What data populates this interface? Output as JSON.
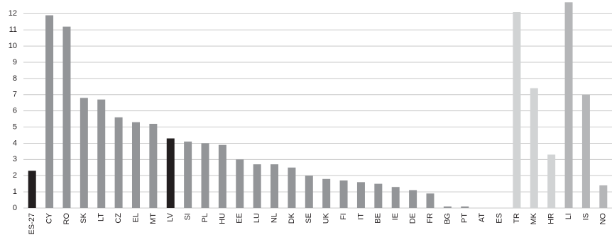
{
  "chart_data": {
    "type": "bar",
    "categories": [
      "ES-27",
      "CY",
      "RO",
      "SK",
      "LT",
      "CZ",
      "EL",
      "MT",
      "LV",
      "SI",
      "PL",
      "HU",
      "EE",
      "LU",
      "NL",
      "DK",
      "SE",
      "UK",
      "FI",
      "IT",
      "BE",
      "IE",
      "DE",
      "FR",
      "BG",
      "PT",
      "AT",
      "ES",
      "TR",
      "MK",
      "HR",
      "LI",
      "IS",
      "NO"
    ],
    "values": [
      2.3,
      11.9,
      11.2,
      6.8,
      6.7,
      5.6,
      5.3,
      5.2,
      4.3,
      4.1,
      4.0,
      3.9,
      3.0,
      2.7,
      2.7,
      2.5,
      2.0,
      1.8,
      1.7,
      1.6,
      1.5,
      1.3,
      1.1,
      0.9,
      0.1,
      0.1,
      0,
      0,
      12.1,
      7.4,
      3.3,
      12.7,
      7.0,
      1.4
    ],
    "colors": [
      "#231f20",
      "#939598",
      "#939598",
      "#939598",
      "#939598",
      "#939598",
      "#939598",
      "#939598",
      "#231f20",
      "#939598",
      "#939598",
      "#939598",
      "#939598",
      "#939598",
      "#939598",
      "#939598",
      "#939598",
      "#939598",
      "#939598",
      "#939598",
      "#939598",
      "#939598",
      "#939598",
      "#939598",
      "#939598",
      "#939598",
      "#939598",
      "#939598",
      "#d1d3d4",
      "#d1d3d4",
      "#d1d3d4",
      "#b5b6b8",
      "#b5b6b8",
      "#b5b6b8"
    ],
    "ylim": [
      0,
      12.8
    ],
    "yticks": [
      0,
      1,
      2,
      3,
      4,
      5,
      6,
      7,
      8,
      9,
      10,
      11,
      12
    ],
    "grid": true
  }
}
